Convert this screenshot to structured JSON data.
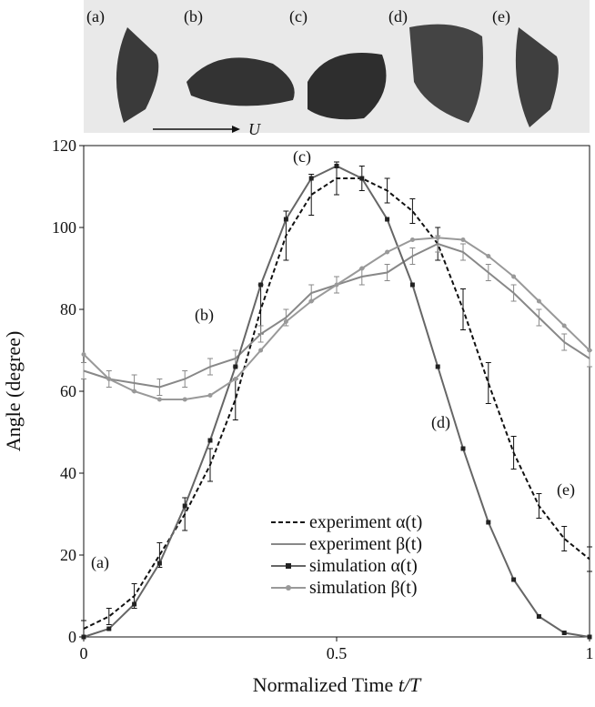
{
  "photo_strip": {
    "labels": [
      "(a)",
      "(b)",
      "(c)",
      "(d)",
      "(e)"
    ],
    "flow_label": "U"
  },
  "chart_data": {
    "type": "line",
    "y_label": "Angle (degree)",
    "x_label": "Normalized Time ",
    "x_label_var": "t/T",
    "x": [
      0,
      0.05,
      0.1,
      0.15,
      0.2,
      0.25,
      0.3,
      0.35,
      0.4,
      0.45,
      0.5,
      0.55,
      0.6,
      0.65,
      0.7,
      0.75,
      0.8,
      0.85,
      0.9,
      0.95,
      1
    ],
    "xlim": [
      0,
      1
    ],
    "xticks": [
      0,
      0.5,
      1
    ],
    "ylim": [
      0,
      120
    ],
    "yticks": [
      0,
      20,
      40,
      60,
      80,
      100,
      120
    ],
    "legend": "lower center",
    "annotations": [
      "(a)",
      "(b)",
      "(c)",
      "(d)",
      "(e)"
    ],
    "series": [
      {
        "name": "experiment α(t)",
        "color": "#111111",
        "dash": true,
        "marker": "none",
        "values": [
          2,
          5,
          10,
          20,
          30,
          42,
          58,
          80,
          98,
          108,
          112,
          112,
          109,
          104,
          96,
          80,
          62,
          45,
          32,
          24,
          19
        ],
        "errors": [
          2,
          2,
          3,
          3,
          4,
          4,
          5,
          6,
          6,
          5,
          4,
          3,
          3,
          3,
          4,
          5,
          5,
          4,
          3,
          3,
          3
        ]
      },
      {
        "name": "experiment β(t)",
        "color": "#888888",
        "dash": false,
        "marker": "none",
        "values": [
          65,
          63,
          62,
          61,
          63,
          66,
          68,
          74,
          78,
          84,
          86,
          88,
          89,
          93,
          96,
          94,
          89,
          84,
          78,
          72,
          68
        ],
        "errors": [
          2,
          2,
          2,
          2,
          2,
          2,
          2,
          2,
          2,
          2,
          2,
          2,
          2,
          2,
          2,
          2,
          2,
          2,
          2,
          2,
          2
        ]
      },
      {
        "name": "simulation α(t)",
        "color": "#222222",
        "dash": false,
        "marker": "square",
        "values": [
          0,
          2,
          8,
          18,
          32,
          48,
          66,
          86,
          102,
          112,
          115,
          112,
          102,
          86,
          66,
          46,
          28,
          14,
          5,
          1,
          0
        ]
      },
      {
        "name": "simulation β(t)",
        "color": "#999999",
        "dash": false,
        "marker": "circle",
        "values": [
          69,
          63,
          60,
          58,
          58,
          59,
          63,
          70,
          77,
          82,
          86,
          90,
          94,
          97,
          97.5,
          97,
          93,
          88,
          82,
          76,
          70
        ]
      }
    ]
  }
}
